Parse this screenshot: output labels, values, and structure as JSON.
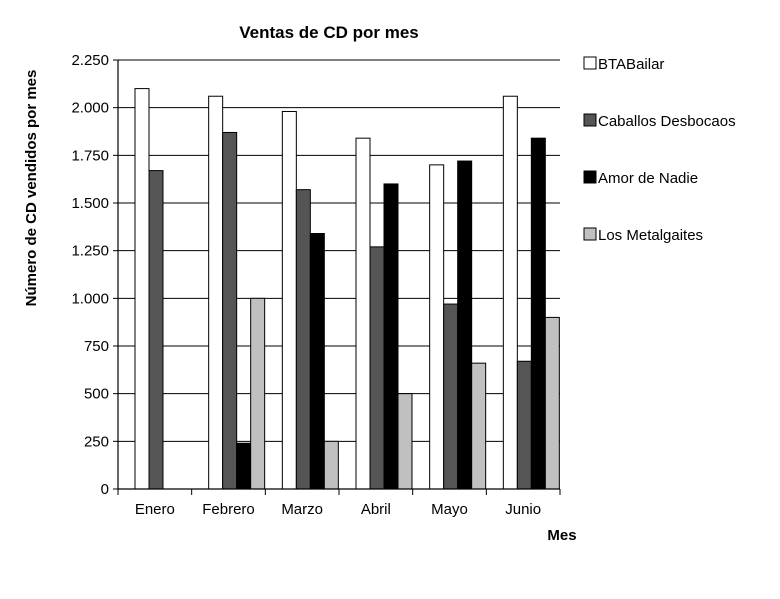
{
  "chart_data": {
    "type": "bar",
    "title": "Ventas de CD por mes",
    "xlabel": "Mes",
    "ylabel": "Número de CD vendidos por mes",
    "categories": [
      "Enero",
      "Febrero",
      "Marzo",
      "Abril",
      "Mayo",
      "Junio"
    ],
    "ylim": [
      0,
      2250
    ],
    "yticks": [
      0,
      250,
      500,
      750,
      1000,
      1250,
      1500,
      1750,
      2000,
      2250
    ],
    "ytick_labels": [
      "0",
      "250",
      "500",
      "750",
      "1.000",
      "1.250",
      "1.500",
      "1.750",
      "2.000",
      "2.250"
    ],
    "grid": "horizontal",
    "legend_position": "right",
    "series": [
      {
        "name": "BTABailar",
        "color": "#ffffff",
        "values": [
          2100,
          2060,
          1980,
          1840,
          1700,
          2060
        ]
      },
      {
        "name": "Caballos Desbocaos",
        "color": "#555555",
        "values": [
          1670,
          1870,
          1570,
          1270,
          970,
          670
        ]
      },
      {
        "name": "Amor de Nadie",
        "color": "#000000",
        "values": [
          0,
          240,
          1340,
          1600,
          1720,
          1840
        ]
      },
      {
        "name": "Los Metalgaites",
        "color": "#c0c0c0",
        "values": [
          0,
          1000,
          250,
          500,
          660,
          900
        ]
      }
    ]
  }
}
